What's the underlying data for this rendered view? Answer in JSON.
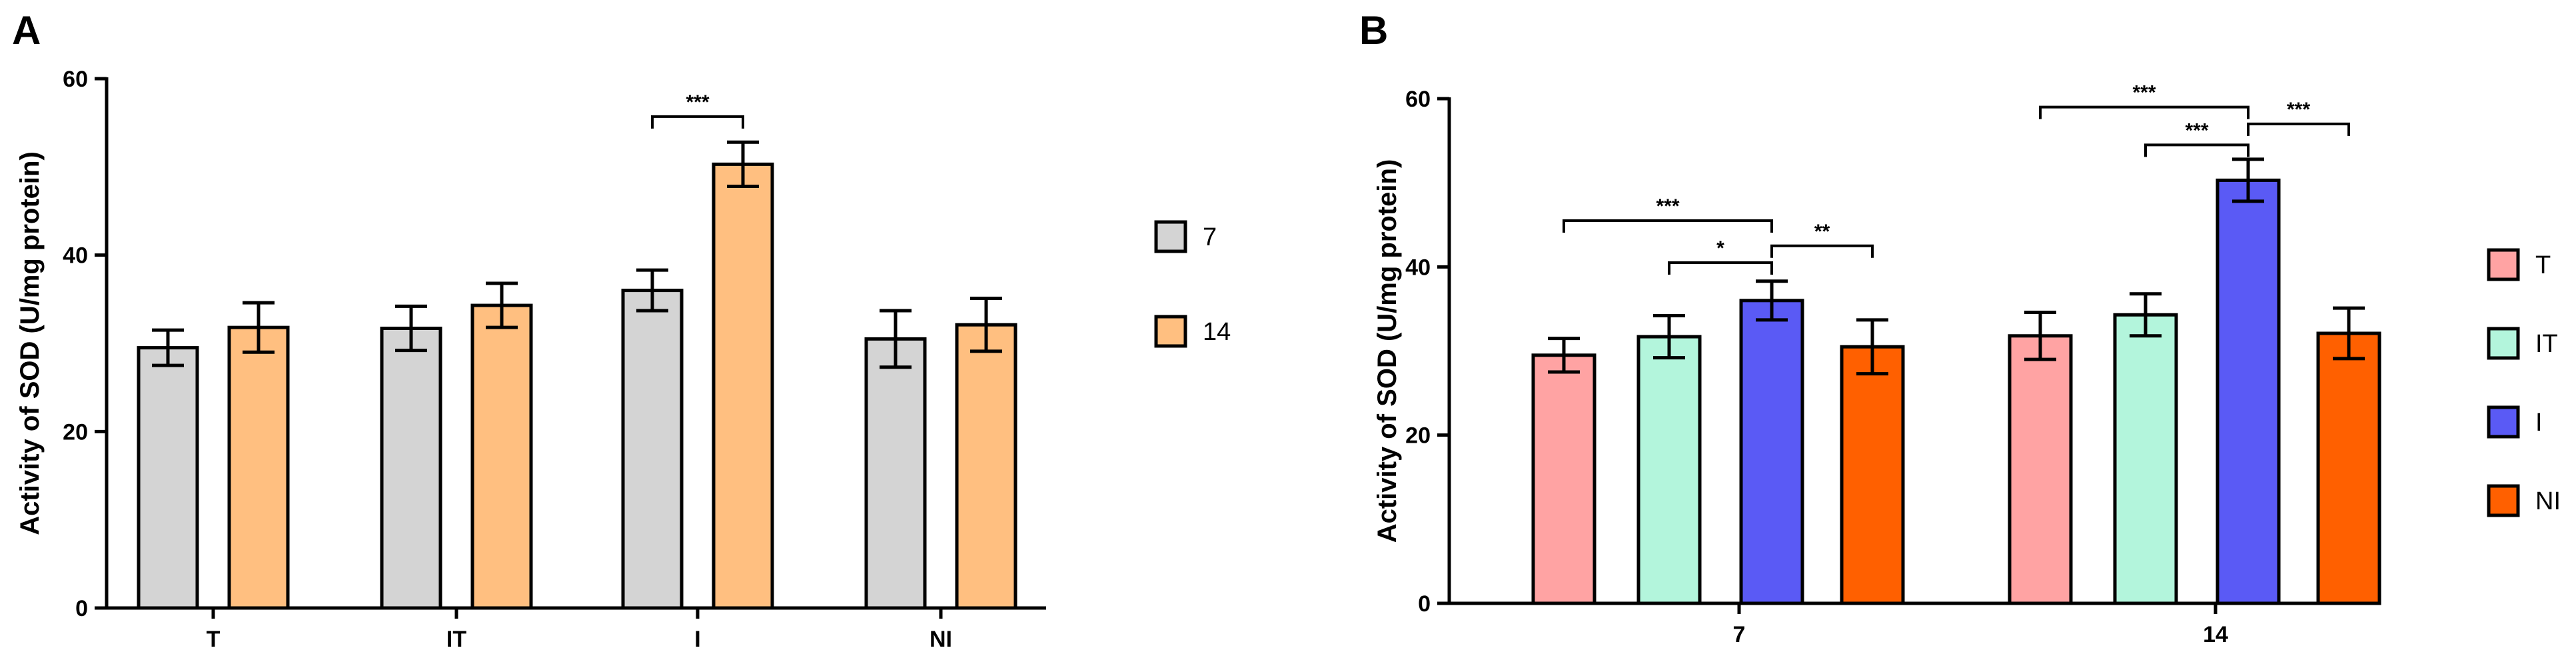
{
  "chart_data": [
    {
      "panel": "A",
      "type": "bar",
      "ylabel": "Activity of SOD (U/mg protein)",
      "xlabel": "",
      "ylim": [
        0,
        60
      ],
      "yticks": [
        0,
        20,
        40,
        60
      ],
      "categories": [
        "T",
        "IT",
        "I",
        "NI"
      ],
      "series": [
        {
          "name": "7",
          "color": "#d4d4d4",
          "values": [
            29.5,
            31.7,
            36.0,
            30.5
          ],
          "errors": [
            2.0,
            2.5,
            2.3,
            3.2
          ]
        },
        {
          "name": "14",
          "color": "#ffbf80",
          "values": [
            31.8,
            34.3,
            50.3,
            32.1
          ],
          "errors": [
            2.8,
            2.5,
            2.5,
            3.0
          ]
        }
      ],
      "significance": [
        {
          "category": 2,
          "from_series": 0,
          "to_series": 1,
          "label": "***",
          "level": 55.7
        }
      ],
      "legend_position": "right"
    },
    {
      "panel": "B",
      "type": "bar",
      "ylabel": "Activity of SOD (U/mg protein)",
      "xlabel": "",
      "ylim": [
        0,
        60
      ],
      "yticks": [
        0,
        20,
        40,
        60
      ],
      "categories": [
        "7",
        "14"
      ],
      "series": [
        {
          "name": "T",
          "color": "#ffa3a3",
          "values": [
            29.5,
            31.8
          ],
          "errors": [
            2.0,
            2.8
          ]
        },
        {
          "name": "IT",
          "color": "#b3f5dc",
          "values": [
            31.7,
            34.3
          ],
          "errors": [
            2.5,
            2.5
          ]
        },
        {
          "name": "I",
          "color": "#5a5af5",
          "values": [
            36.0,
            50.3
          ],
          "errors": [
            2.3,
            2.5
          ]
        },
        {
          "name": "NI",
          "color": "#ff6000",
          "values": [
            30.5,
            32.1
          ],
          "errors": [
            3.2,
            3.0
          ]
        }
      ],
      "significance": [
        {
          "category": 0,
          "from_series": 0,
          "to_series": 2,
          "label": "***",
          "level": 45.5
        },
        {
          "category": 0,
          "from_series": 1,
          "to_series": 2,
          "label": "*",
          "level": 40.5
        },
        {
          "category": 0,
          "from_series": 2,
          "to_series": 3,
          "label": "**",
          "level": 42.5
        },
        {
          "category": 1,
          "from_series": 0,
          "to_series": 2,
          "label": "***",
          "level": 59.0
        },
        {
          "category": 1,
          "from_series": 1,
          "to_series": 2,
          "label": "***",
          "level": 54.5
        },
        {
          "category": 1,
          "from_series": 2,
          "to_series": 3,
          "label": "***",
          "level": 57.0
        }
      ],
      "legend_position": "right"
    }
  ]
}
